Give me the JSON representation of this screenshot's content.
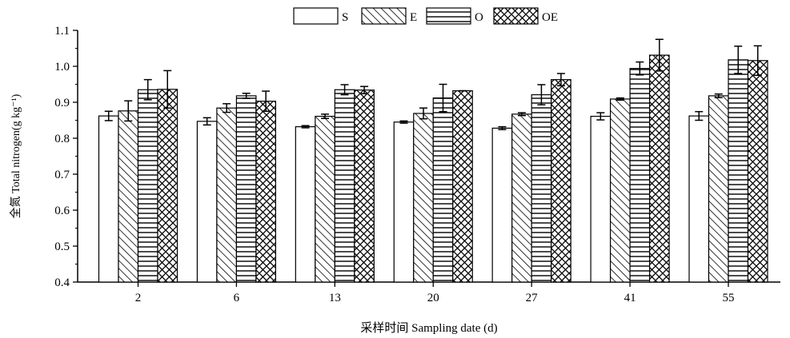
{
  "chart_data": {
    "type": "bar",
    "title": "",
    "xlabel": "采样时间 Sampling date (d)",
    "ylabel": "全氮 Total nitrogen(g kg⁻¹)",
    "ylim": [
      0.4,
      1.1
    ],
    "yticks": [
      "0.4",
      "0.5",
      "0.6",
      "0.7",
      "0.8",
      "0.9",
      "1.0",
      "1.1"
    ],
    "categories": [
      "2",
      "6",
      "13",
      "20",
      "27",
      "41",
      "55"
    ],
    "legend_position": "top-center",
    "grid": false,
    "series": [
      {
        "name": "S",
        "pattern": "none",
        "values": [
          0.862,
          0.847,
          0.832,
          0.845,
          0.828,
          0.861,
          0.862
        ],
        "errors": [
          0.013,
          0.01,
          0.003,
          0.003,
          0.004,
          0.01,
          0.012
        ]
      },
      {
        "name": "E",
        "pattern": "diagonal",
        "values": [
          0.876,
          0.884,
          0.861,
          0.869,
          0.867,
          0.909,
          0.918
        ],
        "errors": [
          0.028,
          0.012,
          0.006,
          0.015,
          0.004,
          0.003,
          0.005
        ]
      },
      {
        "name": "O",
        "pattern": "horizontal",
        "values": [
          0.935,
          0.918,
          0.935,
          0.912,
          0.921,
          0.994,
          1.018
        ],
        "errors": [
          0.028,
          0.007,
          0.014,
          0.038,
          0.028,
          0.018,
          0.038
        ]
      },
      {
        "name": "OE",
        "pattern": "crosshatch",
        "values": [
          0.936,
          0.903,
          0.934,
          0.932,
          0.963,
          1.031,
          1.016
        ],
        "errors": [
          0.052,
          0.028,
          0.01,
          0.0,
          0.017,
          0.044,
          0.041
        ]
      }
    ]
  }
}
